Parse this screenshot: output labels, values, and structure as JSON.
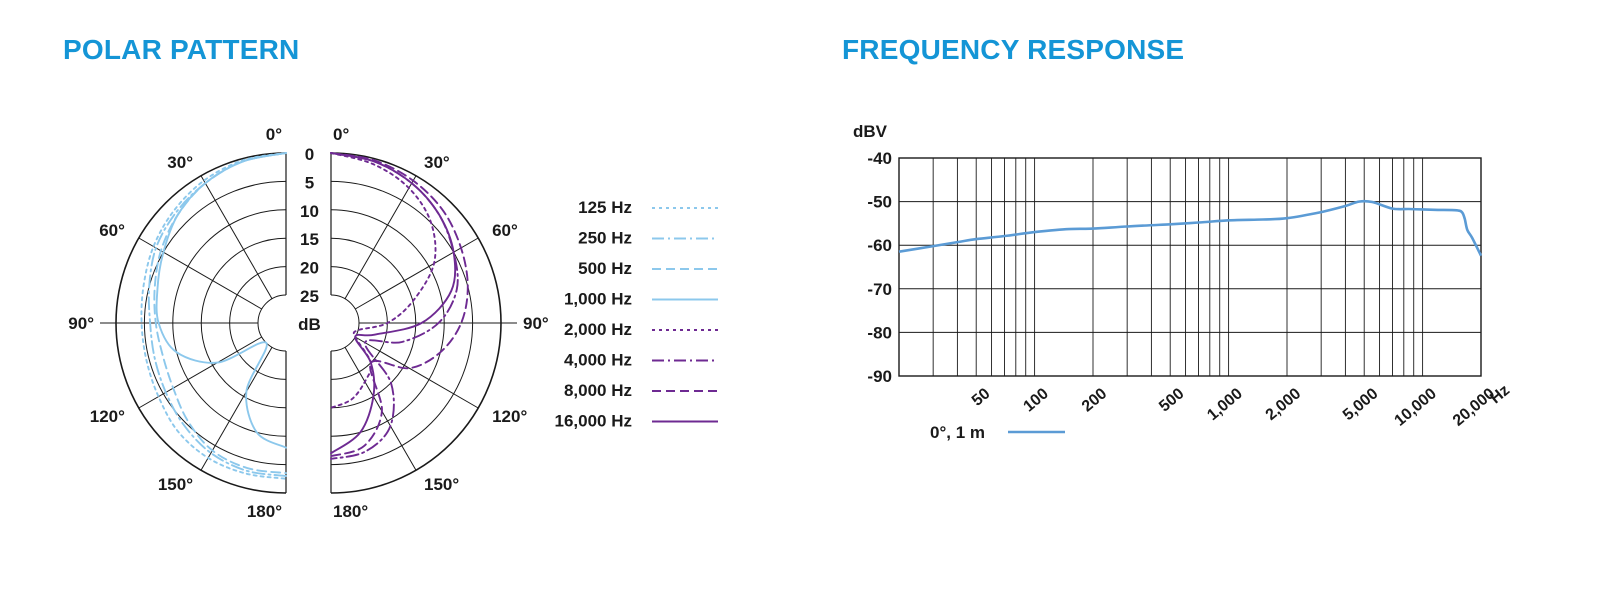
{
  "polar_section": {
    "title": "POLAR PATTERN"
  },
  "frequency_section": {
    "title": "FREQUENCY RESPONSE"
  },
  "colors": {
    "title": "#1495d6",
    "light_blue": "#8cc8ec",
    "purple": "#6e2a92",
    "response_blue": "#5b9bd5",
    "grid": "#1a1a1a"
  },
  "chart_data": [
    {
      "type": "polar",
      "angle_labels_left": [
        "0°",
        "30°",
        "60°",
        "90°",
        "120°",
        "150°",
        "180°"
      ],
      "angle_labels_right": [
        "0°",
        "30°",
        "60°",
        "90°",
        "120°",
        "150°",
        "180°"
      ],
      "radial_labels": [
        "0",
        "5",
        "10",
        "15",
        "20",
        "25"
      ],
      "radial_unit": "dB",
      "angles_deg": [
        0,
        15,
        30,
        45,
        60,
        75,
        90,
        105,
        120,
        135,
        150,
        165,
        180
      ],
      "series": [
        {
          "name": "125 Hz",
          "side": "left",
          "color": "#8cc8ec",
          "dash": "dotted",
          "values_db": [
            0,
            0.3,
            1,
            2,
            3,
            4,
            4.5,
            4.5,
            4,
            3,
            2.5,
            2.5,
            2.5
          ]
        },
        {
          "name": "250 Hz",
          "side": "left",
          "color": "#8cc8ec",
          "dash": "dashdot",
          "values_db": [
            0,
            0.5,
            1.5,
            2.5,
            3.5,
            5,
            6,
            6,
            5.5,
            4.5,
            3.5,
            3,
            3
          ]
        },
        {
          "name": "500 Hz",
          "side": "left",
          "color": "#8cc8ec",
          "dash": "dashed",
          "values_db": [
            0,
            0.5,
            1.5,
            3,
            4.5,
            6,
            7,
            7.5,
            7,
            5.5,
            4,
            3.5,
            3.5
          ]
        },
        {
          "name": "1,000 Hz",
          "side": "left",
          "color": "#8cc8ec",
          "dash": "solid",
          "values_db": [
            0,
            0.5,
            1.5,
            3,
            5,
            6.5,
            7.5,
            10,
            16,
            25,
            16,
            10,
            8
          ]
        },
        {
          "name": "2,000 Hz",
          "side": "right",
          "color": "#6e2a92",
          "dash": "dotted",
          "values_db": [
            0,
            1,
            2.5,
            5,
            9,
            15,
            20,
            25,
            25,
            20,
            18,
            16,
            15
          ]
        },
        {
          "name": "4,000 Hz",
          "side": "right",
          "color": "#6e2a92",
          "dash": "dashdot",
          "values_db": [
            0,
            0.5,
            1.5,
            3,
            5,
            7,
            11,
            17,
            23,
            15,
            9,
            6.5,
            6
          ]
        },
        {
          "name": "8,000 Hz",
          "side": "right",
          "color": "#6e2a92",
          "dash": "dashed",
          "values_db": [
            0,
            0.3,
            1,
            2,
            3.5,
            5,
            7,
            10,
            14,
            20,
            12,
            7.5,
            6.5
          ]
        },
        {
          "name": "16,000 Hz",
          "side": "right",
          "color": "#6e2a92",
          "dash": "solid",
          "values_db": [
            0,
            0.5,
            1.5,
            3,
            5,
            8,
            14,
            22,
            25,
            20,
            15,
            10,
            7
          ]
        }
      ]
    },
    {
      "type": "line",
      "ylabel": "dBV",
      "xunit": "Hz",
      "xscale": "log",
      "xlim": [
        20,
        20000
      ],
      "ylim": [
        -90,
        -40
      ],
      "yticks": [
        -40,
        -50,
        -60,
        -70,
        -80,
        -90
      ],
      "ytick_labels": [
        "-40",
        "-50",
        "-60",
        "-70",
        "-80",
        "-90"
      ],
      "xticks": [
        50,
        100,
        200,
        500,
        1000,
        2000,
        5000,
        10000,
        20000
      ],
      "xtick_labels": [
        "50",
        "100",
        "200",
        "500",
        "1,000",
        "2,000",
        "5,000",
        "10,000",
        "20,000"
      ],
      "grid": true,
      "series": [
        {
          "name": "0°, 1 m",
          "color": "#5b9bd5",
          "x": [
            20,
            30,
            40,
            50,
            70,
            100,
            150,
            200,
            300,
            500,
            700,
            1000,
            1500,
            2000,
            3000,
            4000,
            4700,
            5500,
            7000,
            8500,
            10000,
            12000,
            15000,
            16000,
            16500,
            17000,
            18000,
            20000
          ],
          "y": [
            -61.5,
            -60.2,
            -59.3,
            -58.6,
            -57.9,
            -57.0,
            -56.3,
            -56.2,
            -55.7,
            -55.2,
            -54.8,
            -54.3,
            -54.1,
            -53.8,
            -52.4,
            -51.0,
            -50.0,
            -50.1,
            -51.6,
            -51.7,
            -51.8,
            -51.9,
            -52.0,
            -52.5,
            -54.0,
            -56.5,
            -58.3,
            -62.4
          ]
        }
      ]
    }
  ]
}
